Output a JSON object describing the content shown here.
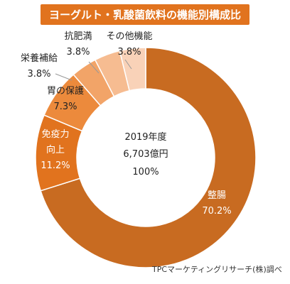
{
  "title": "ヨーグルト・乳酸菌飲料の機能別構成比",
  "source": "TPCマーケティングリサーチ(株)調べ",
  "center": {
    "year": "2019年度",
    "total": "6,703億円",
    "percent": "100%"
  },
  "colors": {
    "title_bg": "#e1731e",
    "slices": [
      "#c86b21",
      "#e1731e",
      "#ec8a3c",
      "#f2a468",
      "#f6bc91",
      "#f9d2b8"
    ]
  },
  "chart_data": {
    "type": "pie",
    "donut": true,
    "categories": [
      "整腸",
      "免疫力向上",
      "胃の保護",
      "栄養補給",
      "抗肥満",
      "その他機能"
    ],
    "values": [
      70.2,
      11.2,
      7.3,
      3.8,
      3.8,
      3.8
    ],
    "labels": [
      {
        "lines": [
          "整腸"
        ],
        "value": "70.2%"
      },
      {
        "lines": [
          "免疫力",
          "向上"
        ],
        "value": "11.2%"
      },
      {
        "lines": [
          "胃の保護"
        ],
        "value": "7.3%"
      },
      {
        "lines": [
          "栄養補給"
        ],
        "value": "3.8%"
      },
      {
        "lines": [
          "抗肥満"
        ],
        "value": "3.8%"
      },
      {
        "lines": [
          "その他機能"
        ],
        "value": "3.8%"
      }
    ]
  }
}
